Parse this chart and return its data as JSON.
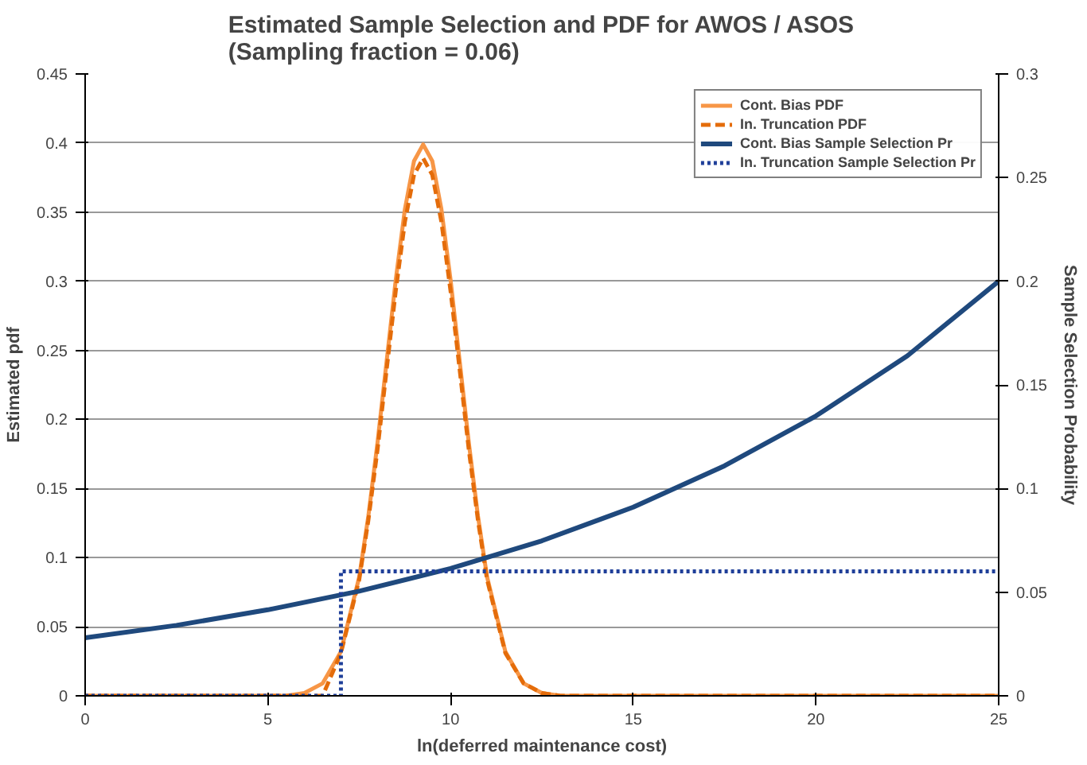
{
  "chart_data": {
    "type": "line",
    "title": "Estimated Sample Selection and PDF for AWOS / ASOS\n(Sampling fraction = 0.06)",
    "xlabel": "ln(deferred maintenance cost)",
    "ylabel": "Estimated pdf",
    "y2label": "Sample Selection Probability",
    "xlim": [
      0,
      25
    ],
    "xticks": [
      0,
      5,
      10,
      15,
      20,
      25
    ],
    "ylim": [
      0,
      0.45
    ],
    "yticks": [
      0,
      0.05,
      0.1,
      0.15,
      0.2,
      0.25,
      0.3,
      0.35,
      0.4,
      0.45
    ],
    "y2lim": [
      0,
      0.3
    ],
    "y2ticks": [
      0,
      0.05,
      0.1,
      0.15,
      0.2,
      0.25,
      0.3
    ],
    "grid": "y",
    "legend": "top right",
    "series": [
      {
        "name": "Cont. Bias PDF",
        "color": "#f79646",
        "line_style": "solid",
        "x": [
          0,
          5,
          5.5,
          6,
          6.5,
          7,
          7.5,
          7.75,
          8,
          8.25,
          8.5,
          8.75,
          9,
          9.25,
          9.5,
          9.75,
          10,
          10.25,
          10.5,
          10.75,
          11,
          11.5,
          12,
          12.5,
          13,
          15,
          20,
          25
        ],
        "values": [
          0,
          0,
          0,
          0.002,
          0.009,
          0.032,
          0.086,
          0.13,
          0.183,
          0.242,
          0.301,
          0.352,
          0.387,
          0.399,
          0.387,
          0.352,
          0.301,
          0.242,
          0.183,
          0.13,
          0.086,
          0.032,
          0.009,
          0.002,
          0,
          0,
          0,
          0
        ]
      },
      {
        "name": "In. Truncation PDF",
        "color": "#e46c0a",
        "line_style": "dashed",
        "x": [
          0,
          5,
          6.5,
          7,
          7.5,
          7.75,
          8,
          8.25,
          8.5,
          8.75,
          9,
          9.25,
          9.5,
          9.75,
          10,
          10.25,
          10.5,
          10.75,
          11,
          11.5,
          12,
          12.5,
          13,
          15,
          20,
          25
        ],
        "values": [
          0,
          0,
          0,
          0.031,
          0.084,
          0.127,
          0.178,
          0.236,
          0.293,
          0.343,
          0.377,
          0.389,
          0.377,
          0.343,
          0.293,
          0.236,
          0.178,
          0.127,
          0.084,
          0.031,
          0.009,
          0.002,
          0,
          0,
          0,
          0
        ]
      },
      {
        "name": "Cont. Bias Sample Selection Pr",
        "color": "#1f497d",
        "line_style": "solid",
        "axis": "y2",
        "x": [
          0,
          2.5,
          5,
          7.5,
          10,
          12.5,
          15,
          17.5,
          20,
          22.5,
          25
        ],
        "values": [
          0.028,
          0.034,
          0.0415,
          0.0505,
          0.0614,
          0.0748,
          0.091,
          0.111,
          0.135,
          0.164,
          0.2
        ]
      },
      {
        "name": "In. Truncation Sample Selection Pr",
        "color": "#1f3f99",
        "line_style": "dotted",
        "axis": "y2",
        "x": [
          0,
          7,
          7,
          25
        ],
        "values": [
          0,
          0,
          0.06,
          0.06
        ]
      }
    ]
  }
}
